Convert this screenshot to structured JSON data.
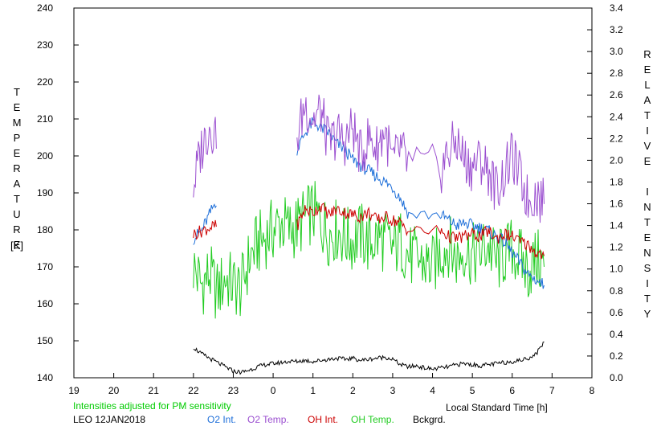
{
  "chart_data": {
    "type": "line",
    "xlabel": "Local Standard Time [h]",
    "ylabel_left": "TEMPERATURE",
    "ylabel_left_unit": "[K]",
    "ylabel_right": "RELATIVE INTENSITY",
    "x_ticks": [
      "19",
      "20",
      "21",
      "22",
      "23",
      "0",
      "1",
      "2",
      "3",
      "4",
      "5",
      "6",
      "7",
      "8"
    ],
    "xlim": [
      19,
      32
    ],
    "ylim_left": [
      140,
      240
    ],
    "ylim_right": [
      0,
      3.4
    ],
    "left_ticks": [
      140,
      150,
      160,
      170,
      180,
      190,
      200,
      210,
      220,
      230,
      240
    ],
    "right_ticks": [
      "0.0",
      "0.2",
      "0.4",
      "0.6",
      "0.8",
      "1.0",
      "1.2",
      "1.4",
      "1.6",
      "1.8",
      "2.0",
      "2.2",
      "2.4",
      "2.6",
      "2.8",
      "3.0",
      "3.2",
      "3.4"
    ],
    "grid": false,
    "series": [
      {
        "name": "O2 Int.",
        "color": "#1e6fd9",
        "axis": "right",
        "x": [
          22.0,
          22.2,
          22.4,
          22.6,
          24.6,
          24.8,
          25.0,
          25.2,
          25.4,
          25.6,
          25.8,
          26.0,
          26.2,
          26.4,
          26.6,
          26.8,
          27.0,
          27.2,
          27.4,
          28.2,
          28.4,
          28.6,
          28.8,
          29.0,
          29.2,
          29.4,
          29.6,
          29.8,
          30.0,
          30.2,
          30.4,
          30.6,
          30.8
        ],
        "y": [
          1.28,
          1.35,
          1.5,
          1.65,
          2.1,
          2.25,
          2.35,
          2.3,
          2.25,
          2.15,
          2.1,
          2.0,
          1.95,
          1.9,
          1.85,
          1.8,
          1.75,
          1.65,
          1.5,
          1.5,
          1.45,
          1.4,
          1.42,
          1.4,
          1.38,
          1.35,
          1.3,
          1.25,
          1.15,
          1.05,
          0.95,
          0.9,
          0.85
        ]
      },
      {
        "name": "O2 Temp.",
        "color": "#9b4fd0",
        "axis": "left",
        "x": [
          22.0,
          22.2,
          22.4,
          22.6,
          24.6,
          24.8,
          25.0,
          25.2,
          25.4,
          25.6,
          25.8,
          26.0,
          26.2,
          26.4,
          26.6,
          26.8,
          27.0,
          27.2,
          27.4,
          28.2,
          28.4,
          28.6,
          28.8,
          29.0,
          29.2,
          29.4,
          29.6,
          29.8,
          30.0,
          30.2,
          30.4,
          30.6,
          30.8
        ],
        "y": [
          192,
          202,
          208,
          206,
          205,
          214,
          210,
          212,
          203,
          206,
          204,
          208,
          200,
          205,
          202,
          207,
          198,
          202,
          197,
          196,
          201,
          204,
          199,
          197,
          199,
          196,
          191,
          195,
          200,
          194,
          188,
          190,
          187
        ]
      },
      {
        "name": "OH Int.",
        "color": "#cc0000",
        "axis": "right",
        "x": [
          22.0,
          22.2,
          22.4,
          22.6,
          24.6,
          24.8,
          25.0,
          25.2,
          25.4,
          25.6,
          25.8,
          26.0,
          26.2,
          26.4,
          26.6,
          26.8,
          27.0,
          27.2,
          27.4,
          28.2,
          28.4,
          28.6,
          28.8,
          29.0,
          29.2,
          29.4,
          29.6,
          29.8,
          30.0,
          30.2,
          30.4,
          30.6,
          30.8
        ],
        "y": [
          1.32,
          1.35,
          1.38,
          1.4,
          1.4,
          1.55,
          1.52,
          1.58,
          1.5,
          1.55,
          1.52,
          1.5,
          1.48,
          1.52,
          1.45,
          1.48,
          1.45,
          1.42,
          1.35,
          1.35,
          1.3,
          1.28,
          1.3,
          1.32,
          1.3,
          1.35,
          1.28,
          1.32,
          1.3,
          1.25,
          1.22,
          1.15,
          1.12
        ]
      },
      {
        "name": "OH Temp.",
        "color": "#22cc22",
        "axis": "left",
        "x": [
          22.0,
          22.2,
          22.4,
          22.6,
          22.8,
          23.0,
          23.2,
          23.4,
          23.6,
          23.8,
          24.0,
          24.2,
          24.4,
          24.6,
          24.8,
          25.0,
          25.2,
          25.4,
          25.6,
          25.8,
          26.0,
          26.2,
          26.4,
          26.6,
          26.8,
          27.0,
          27.2,
          27.4,
          27.6,
          27.8,
          28.0,
          28.2,
          28.4,
          28.6,
          28.8,
          29.0,
          29.2,
          29.4,
          29.6,
          29.8,
          30.0,
          30.2,
          30.4,
          30.6,
          30.8
        ],
        "y": [
          170,
          165,
          168,
          163,
          167,
          165,
          164,
          172,
          176,
          178,
          180,
          182,
          180,
          181,
          183,
          185,
          182,
          179,
          180,
          178,
          177,
          179,
          176,
          178,
          177,
          175,
          177,
          173,
          172,
          171,
          170,
          174,
          176,
          172,
          175,
          173,
          174,
          176,
          171,
          173,
          175,
          172,
          169,
          172,
          170
        ]
      },
      {
        "name": "Bckgrd.",
        "color": "#000000",
        "axis": "right",
        "x": [
          22.0,
          22.2,
          22.4,
          22.6,
          22.8,
          23.0,
          23.2,
          23.4,
          23.6,
          23.8,
          24.0,
          24.2,
          24.4,
          24.6,
          24.8,
          25.0,
          25.2,
          25.4,
          25.6,
          25.8,
          26.0,
          26.2,
          26.4,
          26.6,
          26.8,
          27.0,
          27.2,
          27.4,
          27.6,
          27.8,
          28.0,
          28.2,
          28.4,
          28.6,
          28.8,
          29.0,
          29.2,
          29.4,
          29.6,
          29.8,
          30.0,
          30.2,
          30.4,
          30.6,
          30.8
        ],
        "y": [
          0.28,
          0.22,
          0.18,
          0.14,
          0.1,
          0.06,
          0.05,
          0.07,
          0.1,
          0.12,
          0.13,
          0.14,
          0.15,
          0.15,
          0.16,
          0.15,
          0.16,
          0.17,
          0.18,
          0.17,
          0.18,
          0.16,
          0.17,
          0.18,
          0.19,
          0.17,
          0.12,
          0.1,
          0.11,
          0.09,
          0.08,
          0.09,
          0.1,
          0.12,
          0.13,
          0.12,
          0.11,
          0.12,
          0.13,
          0.14,
          0.15,
          0.16,
          0.18,
          0.22,
          0.33
        ]
      }
    ]
  },
  "labels": {
    "note": "Intensities adjusted for PM sensitivity",
    "station": "LEO 12JAN2018",
    "xlabel": "Local Standard Time [h]",
    "unit_k": "[K]"
  }
}
